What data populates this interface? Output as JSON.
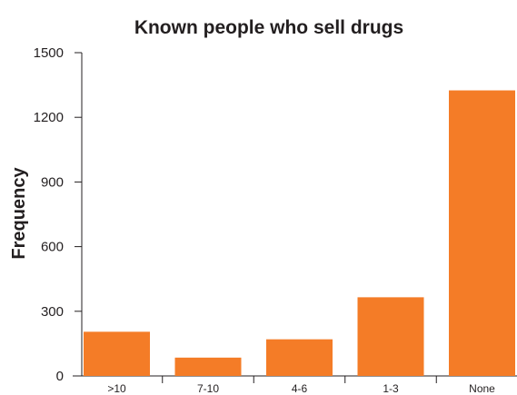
{
  "chart_data": {
    "type": "bar",
    "title": "Known people who sell drugs",
    "xlabel": "",
    "ylabel": "Frequency",
    "categories": [
      ">10",
      "7-10",
      "4-6",
      "1-3",
      "None"
    ],
    "values": [
      205,
      85,
      170,
      365,
      1325
    ],
    "ylim": [
      0,
      1500
    ],
    "yticks": [
      0,
      300,
      600,
      900,
      1200,
      1500
    ],
    "grid": false,
    "legend": "none",
    "bar_color": "#f47c27",
    "axis_color": "#231f20"
  }
}
